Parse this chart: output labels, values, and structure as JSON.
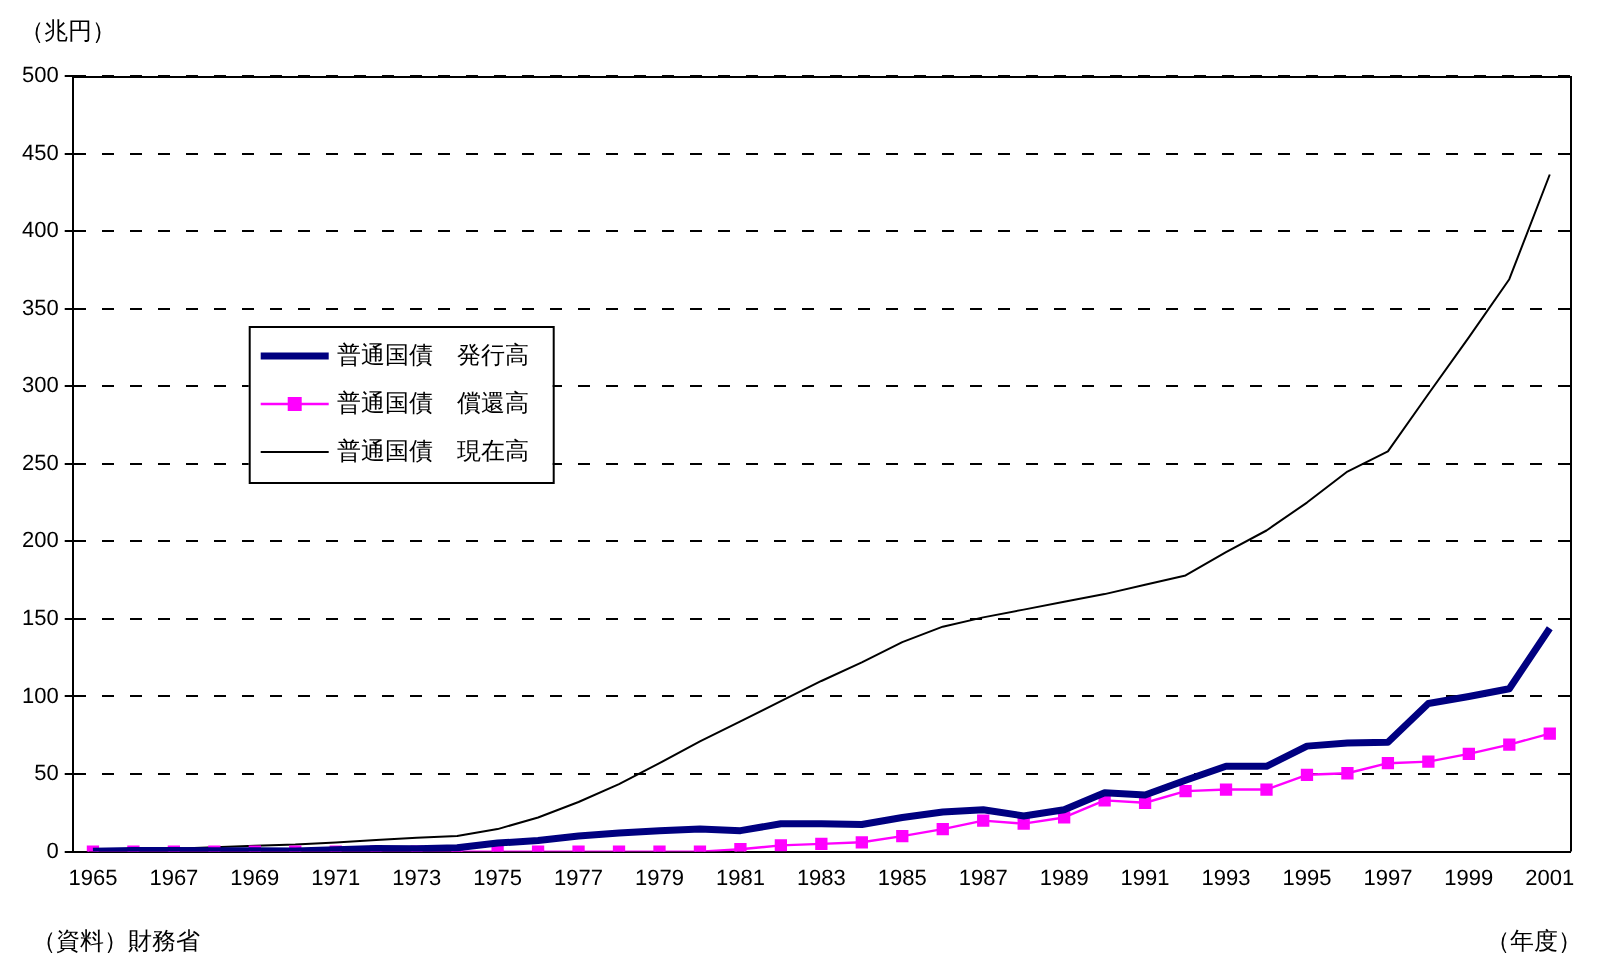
{
  "chart_data": {
    "type": "line",
    "categories": [
      "1965",
      null,
      "1967",
      null,
      "1969",
      null,
      "1971",
      null,
      "1973",
      null,
      "1975",
      null,
      "1977",
      null,
      "1979",
      null,
      "1981",
      null,
      "1983",
      null,
      "1985",
      null,
      "1987",
      null,
      "1989",
      null,
      "1991",
      null,
      "1993",
      null,
      "1995",
      null,
      "1997",
      null,
      "1999",
      null,
      "2001"
    ],
    "series": [
      {
        "name": "普通国債　発行高",
        "color": "#000080",
        "marker": "none",
        "values": [
          0.2,
          0.7,
          0.7,
          0.5,
          0.5,
          0.4,
          1.2,
          2,
          1.8,
          2.5,
          5.5,
          7.2,
          10,
          12,
          13.5,
          14.5,
          13.5,
          18,
          18,
          17.5,
          22,
          25.5,
          27,
          23,
          27,
          38,
          36.5,
          46,
          55,
          55,
          68,
          70,
          70.5,
          95.5,
          100,
          105,
          144
        ]
      },
      {
        "name": "普通国債　償還高",
        "color": "#ff00ff",
        "marker": "square",
        "values": [
          0,
          0,
          0,
          0,
          0,
          0,
          0,
          0,
          0,
          0,
          0,
          0,
          0,
          0,
          0,
          0,
          1.5,
          4,
          5,
          6,
          10,
          14.5,
          20,
          18,
          22,
          33,
          31.5,
          39,
          40,
          40,
          49.5,
          50.5,
          57,
          58,
          63,
          69,
          76
        ]
      },
      {
        "name": "普通国債　現在高",
        "color": "#000000",
        "marker": "none",
        "values": [
          0.2,
          0.9,
          1.9,
          2.8,
          3.7,
          4.5,
          5.9,
          7.5,
          9,
          10,
          14.5,
          22,
          32,
          43.5,
          57,
          71,
          84,
          97,
          110,
          122,
          135,
          145,
          151,
          156,
          161,
          166,
          172,
          178,
          193,
          207,
          225,
          245,
          258,
          295,
          331.5,
          369,
          436.5
        ]
      }
    ],
    "ylim": [
      0,
      500
    ],
    "yticks": [
      0,
      50,
      100,
      150,
      200,
      250,
      300,
      350,
      400,
      450,
      500
    ],
    "ylabel": "（兆円）",
    "xlabel": "（年度）",
    "annotations": [
      "（資料）財務省"
    ],
    "grid": "y",
    "legend": "left"
  }
}
